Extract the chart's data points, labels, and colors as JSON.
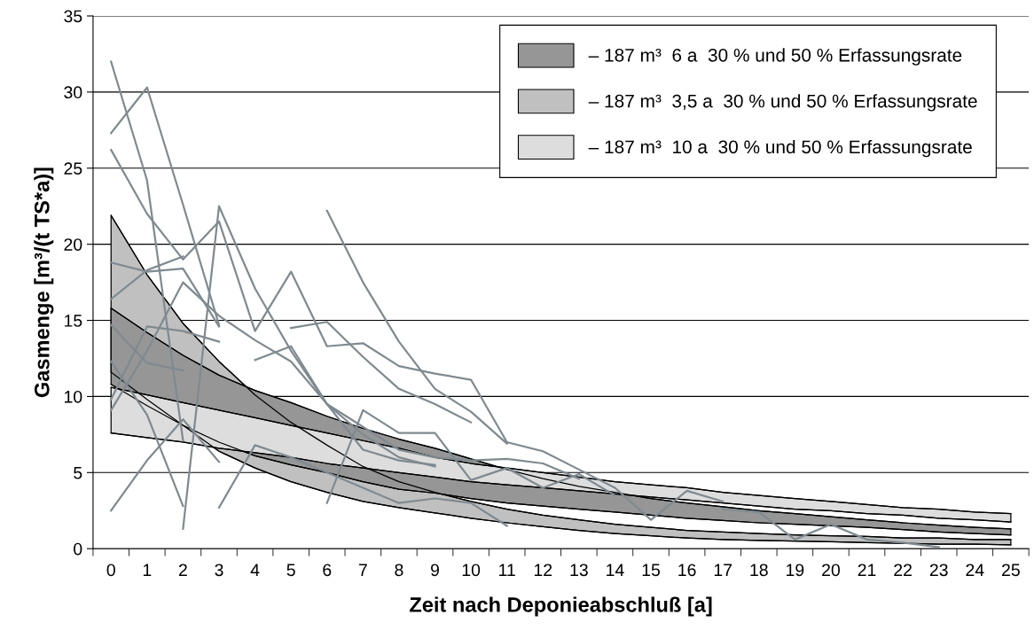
{
  "chart_data": {
    "type": "line",
    "xlabel": "Zeit nach Deponieabschluß [a]",
    "ylabel": "Gasmenge [m³/(t TS*a)]",
    "categories": [
      "0",
      "1",
      "2",
      "3",
      "4",
      "5",
      "6",
      "7",
      "8",
      "9",
      "10",
      "11",
      "12",
      "13",
      "14",
      "15",
      "16",
      "17",
      "18",
      "19",
      "20",
      "21",
      "22",
      "23",
      "24",
      "25"
    ],
    "ylim": [
      0,
      35
    ],
    "yticks": [
      0,
      5,
      10,
      15,
      20,
      25,
      30,
      35
    ],
    "grid": "y",
    "legend": "top right",
    "series": [
      {
        "name": "– 187 m³  6 a  30 % und 50 % Erfassungsrate",
        "type": "area",
        "color": "#969696",
        "values": [
          15.8,
          14.2,
          12.7,
          11.4,
          10.4,
          9.6,
          8.7,
          7.9,
          7.2,
          6.6,
          5.9,
          5.2,
          4.6,
          4.1,
          3.7,
          3.3,
          3.0,
          2.75,
          2.5,
          2.3,
          2.1,
          1.9,
          1.7,
          1.55,
          1.4,
          1.3
        ]
      },
      {
        "color": "#000000",
        "values": [
          10.8,
          9.4,
          8.1,
          7.0,
          6.1,
          5.5,
          5.0,
          4.4,
          3.9,
          3.65,
          3.3,
          3.0,
          2.8,
          2.6,
          2.4,
          2.2,
          2.0,
          1.85,
          1.7,
          1.6,
          1.5,
          1.4,
          1.25,
          1.1,
          1.0,
          0.9
        ]
      },
      {
        "name": "– 187 m³  3,5 a  30 % und 50 % Erfassungsrate",
        "type": "area",
        "color": "#c0c0c0",
        "values": [
          21.9,
          18.0,
          14.8,
          12.3,
          10.1,
          8.3,
          6.8,
          5.4,
          4.4,
          3.7,
          3.1,
          2.6,
          2.2,
          1.9,
          1.6,
          1.4,
          1.2,
          1.1,
          1.0,
          0.9,
          0.85,
          0.8,
          0.7,
          0.7,
          0.6,
          0.6
        ]
      },
      {
        "color": "#000000",
        "values": [
          11.6,
          9.8,
          8.1,
          6.4,
          5.3,
          4.4,
          3.7,
          3.1,
          2.7,
          2.35,
          2.0,
          1.7,
          1.45,
          1.2,
          1.0,
          0.85,
          0.7,
          0.6,
          0.55,
          0.5,
          0.45,
          0.4,
          0.35,
          0.3,
          0.3,
          0.25
        ]
      },
      {
        "name": "– 187 m³  10 a  30 % und 50 % Erfassungsrate",
        "type": "area",
        "color": "#dddddd",
        "values": [
          10.6,
          10.1,
          9.6,
          9.1,
          8.6,
          8.1,
          7.6,
          7.1,
          6.6,
          6.0,
          5.6,
          5.3,
          5.0,
          4.7,
          4.4,
          4.2,
          4.0,
          3.7,
          3.5,
          3.3,
          3.1,
          2.9,
          2.7,
          2.6,
          2.4,
          2.3
        ]
      },
      {
        "color": "#000000",
        "values": [
          7.6,
          7.3,
          7.0,
          6.6,
          6.3,
          6.0,
          5.6,
          5.3,
          5.0,
          4.7,
          4.4,
          4.2,
          4.0,
          3.8,
          3.6,
          3.4,
          3.2,
          3.0,
          2.8,
          2.6,
          2.5,
          2.3,
          2.2,
          2.0,
          1.9,
          1.75
        ]
      },
      {
        "color": "#7f8a90",
        "values": [
          27.3,
          30.3,
          22.6,
          14.7,
          null,
          null,
          null,
          null,
          null,
          null,
          null,
          null,
          null,
          null,
          null,
          null,
          null,
          null,
          null,
          null,
          null,
          null,
          null,
          null,
          null,
          null
        ]
      },
      {
        "color": "#7f8a90",
        "values": [
          32.0,
          24.2,
          7.1,
          null,
          null,
          null,
          null,
          null,
          null,
          null,
          null,
          null,
          null,
          null,
          null,
          null,
          null,
          null,
          null,
          null,
          null,
          null,
          null,
          null,
          null,
          null
        ]
      },
      {
        "color": "#7f8a90",
        "values": [
          26.2,
          22.0,
          19.0,
          21.5,
          14.3,
          18.2,
          13.3,
          13.5,
          12.0,
          11.5,
          11.1,
          7.0,
          6.4,
          5.2,
          4.0,
          1.9,
          3.8,
          3.1,
          null,
          null,
          null,
          null,
          null,
          null,
          null,
          null
        ]
      },
      {
        "color": "#7f8a90",
        "values": [
          18.8,
          18.2,
          18.4,
          14.6,
          null,
          null,
          null,
          null,
          null,
          null,
          null,
          null,
          null,
          null,
          null,
          null,
          null,
          null,
          null,
          null,
          null,
          null,
          null,
          null,
          null,
          null
        ]
      },
      {
        "color": "#7f8a90",
        "values": [
          16.4,
          18.3,
          19.2,
          null,
          null,
          null,
          null,
          null,
          null,
          null,
          null,
          null,
          null,
          null,
          null,
          null,
          null,
          null,
          null,
          null,
          null,
          null,
          null,
          null,
          null,
          null
        ]
      },
      {
        "color": "#7f8a90",
        "values": [
          9.1,
          13.0,
          17.5,
          15.3,
          13.7,
          12.3,
          9.5,
          7.5,
          6.0,
          5.4,
          null,
          null,
          null,
          null,
          null,
          null,
          null,
          null,
          null,
          null,
          null,
          null,
          null,
          null,
          null,
          null
        ]
      },
      {
        "color": "#7f8a90",
        "values": [
          14.7,
          12.2,
          11.7,
          null,
          null,
          null,
          null,
          null,
          null,
          null,
          null,
          null,
          null,
          null,
          null,
          null,
          null,
          null,
          null,
          null,
          null,
          null,
          null,
          null,
          null,
          null
        ]
      },
      {
        "color": "#7f8a90",
        "values": [
          9.8,
          14.6,
          14.3,
          13.6,
          null,
          null,
          null,
          null,
          null,
          null,
          null,
          null,
          null,
          null,
          null,
          null,
          null,
          null,
          null,
          null,
          null,
          null,
          null,
          null,
          null,
          null
        ]
      },
      {
        "color": "#7f8a90",
        "values": [
          2.5,
          5.8,
          8.5,
          5.7,
          null,
          null,
          null,
          null,
          null,
          null,
          null,
          null,
          null,
          null,
          null,
          null,
          null,
          null,
          null,
          null,
          null,
          null,
          null,
          null,
          null,
          null
        ]
      },
      {
        "color": "#7f8a90",
        "values": [
          12.3,
          8.8,
          2.8,
          null,
          null,
          null,
          null,
          null,
          null,
          null,
          null,
          null,
          null,
          null,
          null,
          null,
          null,
          null,
          null,
          null,
          null,
          null,
          null,
          null,
          null,
          null
        ]
      },
      {
        "color": "#7f8a90",
        "values": [
          null,
          null,
          1.3,
          22.5,
          17.1,
          13.0,
          9.5,
          6.5,
          5.8,
          5.5,
          null,
          null,
          null,
          null,
          null,
          null,
          null,
          null,
          null,
          null,
          null,
          null,
          null,
          null,
          null,
          null
        ]
      },
      {
        "color": "#7f8a90",
        "values": [
          null,
          null,
          null,
          2.7,
          6.8,
          6.0,
          5.0,
          4.0,
          3.0,
          3.3,
          3.0,
          1.5,
          null,
          null,
          null,
          null,
          null,
          null,
          null,
          null,
          null,
          null,
          null,
          null,
          null,
          null
        ]
      },
      {
        "color": "#7f8a90",
        "values": [
          null,
          null,
          null,
          null,
          null,
          null,
          22.2,
          17.5,
          13.6,
          10.5,
          9.0,
          6.9,
          null,
          null,
          null,
          null,
          null,
          null,
          null,
          null,
          null,
          null,
          null,
          null,
          null,
          null
        ]
      },
      {
        "color": "#7f8a90",
        "values": [
          null,
          null,
          null,
          null,
          null,
          14.5,
          14.9,
          12.6,
          10.5,
          9.5,
          8.3,
          null,
          null,
          null,
          null,
          null,
          null,
          null,
          null,
          null,
          null,
          null,
          null,
          null,
          null,
          null
        ]
      },
      {
        "color": "#7f8a90",
        "values": [
          null,
          null,
          null,
          null,
          12.4,
          13.3,
          9.5,
          8.0,
          6.5,
          6.0,
          5.8,
          5.9,
          5.6,
          4.6,
          null,
          null,
          null,
          null,
          null,
          null,
          null,
          null,
          null,
          null,
          null,
          null
        ]
      },
      {
        "color": "#7f8a90",
        "values": [
          null,
          null,
          null,
          null,
          null,
          null,
          3.0,
          9.1,
          7.6,
          7.6,
          4.5,
          5.3,
          4.0,
          4.9,
          3.5,
          null,
          null,
          null,
          null,
          null,
          null,
          null,
          null,
          null,
          null,
          null
        ]
      },
      {
        "color": "#7f8a90",
        "values": [
          null,
          null,
          null,
          null,
          null,
          null,
          null,
          null,
          null,
          null,
          null,
          null,
          null,
          null,
          null,
          null,
          null,
          2.6,
          2.4,
          0.6,
          1.6,
          0.6,
          0.4,
          0.1,
          null,
          null
        ]
      }
    ]
  }
}
